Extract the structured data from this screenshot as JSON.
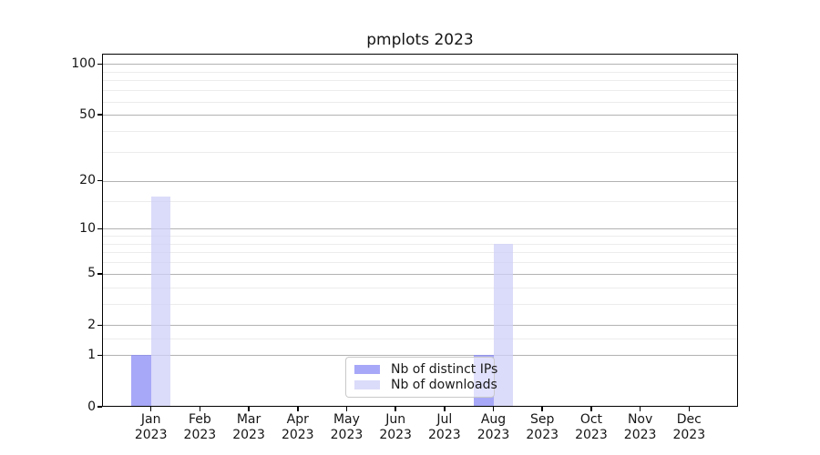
{
  "title": "pmplots 2023",
  "chart_data": {
    "type": "bar",
    "title": "pmplots 2023",
    "categories": [
      "Jan",
      "Feb",
      "Mar",
      "Apr",
      "May",
      "Jun",
      "Jul",
      "Aug",
      "Sep",
      "Oct",
      "Nov",
      "Dec"
    ],
    "year_label": "2023",
    "series": [
      {
        "name": "Nb of distinct IPs",
        "color": "#a8a8f8",
        "color_rgba": "rgba(139,139,245,0.75)",
        "values": [
          1,
          0,
          0,
          0,
          0,
          0,
          0,
          1,
          0,
          0,
          0,
          0
        ]
      },
      {
        "name": "Nb of downloads",
        "color": "#dbdbfa",
        "color_rgba": "rgba(207,207,248,0.75)",
        "values": [
          16,
          0,
          0,
          0,
          0,
          0,
          0,
          8,
          0,
          0,
          0,
          0
        ]
      }
    ],
    "y_scale": "log1p",
    "y_ticks": [
      0,
      1,
      2,
      5,
      10,
      20,
      50,
      100
    ],
    "y_minor_gridlines": [
      1.5,
      3,
      4,
      6,
      7,
      8,
      9,
      15,
      30,
      40,
      60,
      70,
      80,
      90
    ],
    "ylim": [
      0,
      115
    ],
    "xlabel": "",
    "ylabel": "",
    "grid": true,
    "legend_position": "lower center"
  },
  "colors": {
    "bar_ips": "#a8a8f8",
    "bar_downloads": "#dbdbfa",
    "major_grid": "#b2b2b2",
    "minor_grid": "#ececec",
    "spine": "#000000",
    "legend_border": "#c9c9c9"
  }
}
